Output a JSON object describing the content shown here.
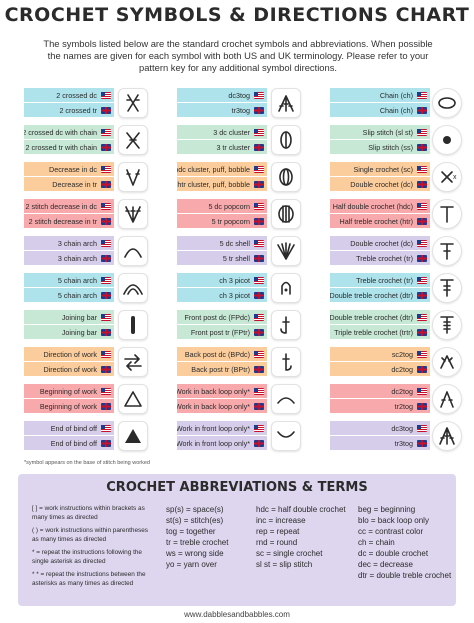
{
  "header": {
    "title": "CROCHET SYMBOLS & DIRECTIONS CHART",
    "intro": "The symbols listed below are the standard crochet symbols and abbreviations. When possible the names are given for each symbol with both US and UK terminology. Please refer to your pattern key for any additional symbol directions."
  },
  "columns": [
    {
      "entries": [
        {
          "us": "2 crossed dc",
          "uk": "2 crossed tr",
          "color": "blue",
          "icon": "crossed-stitch-icon"
        },
        {
          "us": "2 crossed dc with chain",
          "uk": "2 crossed tr with chain",
          "color": "green",
          "icon": "crossed-chain-icon"
        },
        {
          "us": "Decrease in dc",
          "uk": "Decrease in tr",
          "color": "orange",
          "icon": "decrease-dc-icon"
        },
        {
          "us": "2 stitch decrease in dc",
          "uk": "2 stitch decrease in tr",
          "color": "red",
          "icon": "two-decrease-icon"
        },
        {
          "us": "3 chain arch",
          "uk": "3 chain arch",
          "color": "purple",
          "icon": "chain-arch-3-icon"
        },
        {
          "us": "5 chain arch",
          "uk": "5 chain arch",
          "color": "blue",
          "icon": "chain-arch-5-icon"
        },
        {
          "us": "Joining bar",
          "uk": "Joining bar",
          "color": "green",
          "icon": "joining-bar-icon"
        },
        {
          "us": "Direction of work",
          "uk": "Direction of work",
          "color": "orange",
          "icon": "direction-arrows-icon"
        },
        {
          "us": "Beginning of work",
          "uk": "Beginning of work",
          "color": "red",
          "icon": "triangle-outline-icon"
        },
        {
          "us": "End of bind off",
          "uk": "End of bind off",
          "color": "purple",
          "icon": "triangle-filled-icon"
        }
      ]
    },
    {
      "entries": [
        {
          "us": "dc3tog",
          "uk": "tr3tog",
          "color": "blue",
          "icon": "cluster-3-icon"
        },
        {
          "us": "3 dc cluster",
          "uk": "3 tr cluster",
          "color": "green",
          "icon": "dc-cluster-icon"
        },
        {
          "us": "3 hdc cluster, puff, bobble",
          "uk": "3 htr cluster, puff, bobble",
          "color": "orange",
          "icon": "puff-icon"
        },
        {
          "us": "5 dc popcorn",
          "uk": "5 tr popcorn",
          "color": "red",
          "icon": "popcorn-icon"
        },
        {
          "us": "5 dc shell",
          "uk": "5 tr shell",
          "color": "purple",
          "icon": "shell-icon"
        },
        {
          "us": "ch 3 picot",
          "uk": "ch 3 picot",
          "color": "blue",
          "icon": "picot-icon"
        },
        {
          "us": "Front post dc (FPdc)",
          "uk": "Front post tr (FPtr)",
          "color": "green",
          "icon": "front-post-icon"
        },
        {
          "us": "Back post dc (BPdc)",
          "uk": "Back post tr (BPtr)",
          "color": "orange",
          "icon": "back-post-icon"
        },
        {
          "us": "Work in back loop only*",
          "uk": "Work in back loop only*",
          "color": "red",
          "icon": "back-loop-icon"
        },
        {
          "us": "Work in front loop only*",
          "uk": "Work in front loop only*",
          "color": "purple",
          "icon": "front-loop-icon"
        }
      ]
    },
    {
      "entries": [
        {
          "us": "Chain (ch)",
          "uk": "Chain (ch)",
          "color": "blue",
          "icon": "chain-oval-icon"
        },
        {
          "us": "Slip stitch (sl st)",
          "uk": "Slip stitch (ss)",
          "color": "green",
          "icon": "slip-stitch-dot-icon"
        },
        {
          "us": "Single crochet (sc)",
          "uk": "Double crochet (dc)",
          "color": "orange",
          "icon": "single-crochet-x-icon"
        },
        {
          "us": "Half double crochet (hdc)",
          "uk": "Half treble crochet (htr)",
          "color": "red",
          "icon": "hdc-t-icon"
        },
        {
          "us": "Double crochet (dc)",
          "uk": "Treble crochet (tr)",
          "color": "purple",
          "icon": "dc-symbol-icon"
        },
        {
          "us": "Treble crochet (tr)",
          "uk": "Double treble crochet (dtr)",
          "color": "blue",
          "icon": "tr-symbol-icon"
        },
        {
          "us": "Double treble crochet (dtr)",
          "uk": "Triple treble crochet (trtr)",
          "color": "green",
          "icon": "dtr-symbol-icon"
        },
        {
          "us": "sc2tog",
          "uk": "dc2tog",
          "color": "orange",
          "icon": "sc2tog-icon"
        },
        {
          "us": "dc2tog",
          "uk": "tr2tog",
          "color": "red",
          "icon": "dc2tog-icon"
        },
        {
          "us": "dc3tog",
          "uk": "tr3tog",
          "color": "purple",
          "icon": "dc3tog-fan-icon"
        }
      ]
    }
  ],
  "footnote": "*symbol appears on the base of stitch being worked",
  "abbreviations": {
    "title": "CROCHET ABBREVIATIONS & TERMS",
    "col_a": [
      "[ ] = work instructions within brackets as many times as directed",
      "( ) = work instructions within parentheses as many times as directed",
      "* = repeat the instructions following the single asterisk as directed",
      "* * = repeat the instructions between the asterisks as many times as directed"
    ],
    "col_b": [
      "sp(s) = space(s)",
      "st(s) = stitch(es)",
      "tog = together",
      "tr = treble crochet",
      "ws = wrong side",
      "yo = yarn over"
    ],
    "col_c": [
      "hdc = half double crochet",
      "inc = increase",
      "rep = repeat",
      "rnd = round",
      "sc = single crochet",
      "sl st = slip stitch"
    ],
    "col_d": [
      "beg = beginning",
      "blo = back loop only",
      "cc = contrast color",
      "ch = chain",
      "dc = double crochet",
      "dec = decrease",
      "dtr = double treble crochet"
    ]
  },
  "website": "www.dabblesandbabbles.com",
  "colors": {
    "blue": "#aee3ec",
    "green": "#c6e8d4",
    "orange": "#fbcd9c",
    "red": "#f8a9ac",
    "purple": "#d6cdea",
    "terms_bg": "#ddd6ee"
  }
}
